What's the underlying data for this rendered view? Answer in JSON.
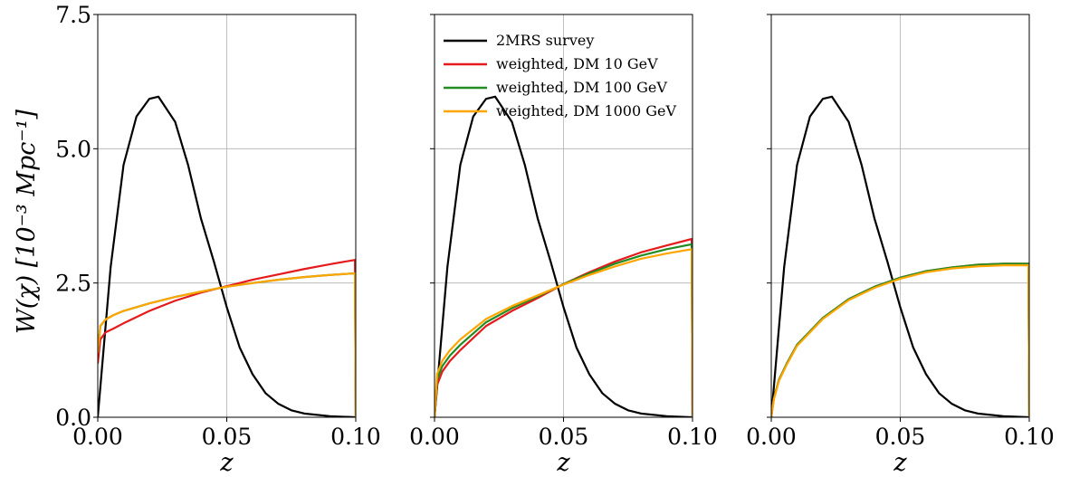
{
  "chart_data": {
    "type": "line",
    "ylabel": "W(χ) [10⁻³ Mpc⁻¹]",
    "xlabel": "z",
    "xlim": [
      0,
      0.1
    ],
    "ylim": [
      0,
      7.5
    ],
    "x_ticks": [
      "0.00",
      "0.05",
      "0.10"
    ],
    "y_ticks": [
      "0.0",
      "2.5",
      "5.0",
      "7.5"
    ],
    "grid": true,
    "legend": {
      "placement": "top (middle panel)",
      "entries": [
        {
          "label": "2MRS survey",
          "color": "#000000"
        },
        {
          "label": "weighted, DM 10 GeV",
          "color": "#e41a1c"
        },
        {
          "label": "weighted, DM 100 GeV",
          "color": "#228b22"
        },
        {
          "label": "weighted, DM 1000 GeV",
          "color": "#ffa500"
        }
      ]
    },
    "panels": [
      {
        "series": [
          {
            "name": "2MRS survey",
            "color": "#000000",
            "points": [
              [
                0,
                0
              ],
              [
                0.005,
                2.8
              ],
              [
                0.01,
                4.7
              ],
              [
                0.015,
                5.6
              ],
              [
                0.02,
                5.93
              ],
              [
                0.0235,
                5.97
              ],
              [
                0.03,
                5.5
              ],
              [
                0.035,
                4.7
              ],
              [
                0.04,
                3.7
              ],
              [
                0.045,
                2.9
              ],
              [
                0.05,
                2.05
              ],
              [
                0.055,
                1.3
              ],
              [
                0.06,
                0.8
              ],
              [
                0.065,
                0.45
              ],
              [
                0.07,
                0.25
              ],
              [
                0.075,
                0.13
              ],
              [
                0.08,
                0.07
              ],
              [
                0.09,
                0.02
              ],
              [
                0.1,
                0.0
              ]
            ]
          },
          {
            "name": "weighted, DM 10 GeV",
            "color": "#e41a1c",
            "points": [
              [
                0,
                1.0
              ],
              [
                0.001,
                1.45
              ],
              [
                0.003,
                1.58
              ],
              [
                0.006,
                1.65
              ],
              [
                0.01,
                1.75
              ],
              [
                0.02,
                1.98
              ],
              [
                0.03,
                2.17
              ],
              [
                0.04,
                2.32
              ],
              [
                0.05,
                2.44
              ],
              [
                0.06,
                2.56
              ],
              [
                0.07,
                2.66
              ],
              [
                0.08,
                2.76
              ],
              [
                0.09,
                2.85
              ],
              [
                0.0997,
                2.93
              ],
              [
                0.1,
                0.0
              ]
            ]
          },
          {
            "name": "weighted, DM 100 GeV",
            "color": "#228b22",
            "points": [
              [
                0,
                1.2
              ],
              [
                0.001,
                1.7
              ],
              [
                0.003,
                1.82
              ],
              [
                0.006,
                1.9
              ],
              [
                0.01,
                1.98
              ],
              [
                0.02,
                2.12
              ],
              [
                0.03,
                2.24
              ],
              [
                0.04,
                2.34
              ],
              [
                0.05,
                2.43
              ],
              [
                0.06,
                2.5
              ],
              [
                0.07,
                2.56
              ],
              [
                0.08,
                2.61
              ],
              [
                0.09,
                2.65
              ],
              [
                0.0997,
                2.68
              ],
              [
                0.1,
                0.0
              ]
            ]
          },
          {
            "name": "weighted, DM 1000 GeV",
            "color": "#ffa500",
            "points": [
              [
                0,
                1.2
              ],
              [
                0.001,
                1.7
              ],
              [
                0.003,
                1.82
              ],
              [
                0.006,
                1.9
              ],
              [
                0.01,
                1.98
              ],
              [
                0.02,
                2.12
              ],
              [
                0.03,
                2.24
              ],
              [
                0.04,
                2.34
              ],
              [
                0.05,
                2.43
              ],
              [
                0.06,
                2.5
              ],
              [
                0.07,
                2.56
              ],
              [
                0.08,
                2.61
              ],
              [
                0.09,
                2.65
              ],
              [
                0.0997,
                2.68
              ],
              [
                0.1,
                0.0
              ]
            ]
          }
        ]
      },
      {
        "series": [
          {
            "name": "2MRS survey",
            "color": "#000000",
            "points": [
              [
                0,
                0
              ],
              [
                0.005,
                2.8
              ],
              [
                0.01,
                4.7
              ],
              [
                0.015,
                5.6
              ],
              [
                0.02,
                5.93
              ],
              [
                0.0235,
                5.97
              ],
              [
                0.03,
                5.5
              ],
              [
                0.035,
                4.7
              ],
              [
                0.04,
                3.7
              ],
              [
                0.045,
                2.9
              ],
              [
                0.05,
                2.05
              ],
              [
                0.055,
                1.3
              ],
              [
                0.06,
                0.8
              ],
              [
                0.065,
                0.45
              ],
              [
                0.07,
                0.25
              ],
              [
                0.075,
                0.13
              ],
              [
                0.08,
                0.07
              ],
              [
                0.09,
                0.02
              ],
              [
                0.1,
                0.0
              ]
            ]
          },
          {
            "name": "weighted, DM 10 GeV",
            "color": "#e41a1c",
            "points": [
              [
                0,
                0
              ],
              [
                0.001,
                0.6
              ],
              [
                0.003,
                0.85
              ],
              [
                0.006,
                1.05
              ],
              [
                0.01,
                1.25
              ],
              [
                0.02,
                1.7
              ],
              [
                0.03,
                1.98
              ],
              [
                0.04,
                2.22
              ],
              [
                0.05,
                2.48
              ],
              [
                0.06,
                2.7
              ],
              [
                0.07,
                2.9
              ],
              [
                0.08,
                3.07
              ],
              [
                0.09,
                3.2
              ],
              [
                0.0997,
                3.32
              ],
              [
                0.1,
                0.0
              ]
            ]
          },
          {
            "name": "weighted, DM 100 GeV",
            "color": "#228b22",
            "points": [
              [
                0,
                0
              ],
              [
                0.001,
                0.7
              ],
              [
                0.003,
                0.95
              ],
              [
                0.006,
                1.15
              ],
              [
                0.01,
                1.35
              ],
              [
                0.02,
                1.77
              ],
              [
                0.03,
                2.03
              ],
              [
                0.04,
                2.25
              ],
              [
                0.05,
                2.48
              ],
              [
                0.06,
                2.68
              ],
              [
                0.07,
                2.86
              ],
              [
                0.08,
                3.01
              ],
              [
                0.09,
                3.13
              ],
              [
                0.0997,
                3.22
              ],
              [
                0.1,
                0.0
              ]
            ]
          },
          {
            "name": "weighted, DM 1000 GeV",
            "color": "#ffa500",
            "points": [
              [
                0,
                0
              ],
              [
                0.001,
                0.8
              ],
              [
                0.003,
                1.05
              ],
              [
                0.006,
                1.25
              ],
              [
                0.01,
                1.45
              ],
              [
                0.02,
                1.83
              ],
              [
                0.03,
                2.07
              ],
              [
                0.04,
                2.27
              ],
              [
                0.05,
                2.47
              ],
              [
                0.06,
                2.65
              ],
              [
                0.07,
                2.81
              ],
              [
                0.08,
                2.95
              ],
              [
                0.09,
                3.05
              ],
              [
                0.0997,
                3.13
              ],
              [
                0.1,
                0.0
              ]
            ]
          }
        ]
      },
      {
        "series": [
          {
            "name": "2MRS survey",
            "color": "#000000",
            "points": [
              [
                0,
                0
              ],
              [
                0.005,
                2.8
              ],
              [
                0.01,
                4.7
              ],
              [
                0.015,
                5.6
              ],
              [
                0.02,
                5.93
              ],
              [
                0.0235,
                5.97
              ],
              [
                0.03,
                5.5
              ],
              [
                0.035,
                4.7
              ],
              [
                0.04,
                3.7
              ],
              [
                0.045,
                2.9
              ],
              [
                0.05,
                2.05
              ],
              [
                0.055,
                1.3
              ],
              [
                0.06,
                0.8
              ],
              [
                0.065,
                0.45
              ],
              [
                0.07,
                0.25
              ],
              [
                0.075,
                0.13
              ],
              [
                0.08,
                0.07
              ],
              [
                0.09,
                0.02
              ],
              [
                0.1,
                0.0
              ]
            ]
          },
          {
            "name": "weighted, DM 10 GeV",
            "color": "#e41a1c",
            "points": [
              [
                0,
                0
              ],
              [
                0.001,
                0.35
              ],
              [
                0.003,
                0.7
              ],
              [
                0.006,
                1.0
              ],
              [
                0.01,
                1.35
              ],
              [
                0.02,
                1.85
              ],
              [
                0.03,
                2.2
              ],
              [
                0.04,
                2.43
              ],
              [
                0.05,
                2.6
              ],
              [
                0.06,
                2.72
              ],
              [
                0.07,
                2.79
              ],
              [
                0.08,
                2.84
              ],
              [
                0.09,
                2.86
              ],
              [
                0.0997,
                2.86
              ],
              [
                0.1,
                0.0
              ]
            ]
          },
          {
            "name": "weighted, DM 100 GeV",
            "color": "#228b22",
            "points": [
              [
                0,
                0
              ],
              [
                0.001,
                0.35
              ],
              [
                0.003,
                0.7
              ],
              [
                0.006,
                1.0
              ],
              [
                0.01,
                1.35
              ],
              [
                0.02,
                1.85
              ],
              [
                0.03,
                2.2
              ],
              [
                0.04,
                2.43
              ],
              [
                0.05,
                2.6
              ],
              [
                0.06,
                2.72
              ],
              [
                0.07,
                2.79
              ],
              [
                0.08,
                2.84
              ],
              [
                0.09,
                2.86
              ],
              [
                0.0997,
                2.86
              ],
              [
                0.1,
                0.0
              ]
            ]
          },
          {
            "name": "weighted, DM 1000 GeV",
            "color": "#ffa500",
            "points": [
              [
                0,
                0
              ],
              [
                0.001,
                0.33
              ],
              [
                0.003,
                0.68
              ],
              [
                0.006,
                0.98
              ],
              [
                0.01,
                1.33
              ],
              [
                0.02,
                1.83
              ],
              [
                0.03,
                2.18
              ],
              [
                0.04,
                2.41
              ],
              [
                0.05,
                2.58
              ],
              [
                0.06,
                2.7
              ],
              [
                0.07,
                2.77
              ],
              [
                0.08,
                2.81
              ],
              [
                0.09,
                2.83
              ],
              [
                0.0997,
                2.83
              ],
              [
                0.1,
                0.0
              ]
            ]
          }
        ]
      }
    ]
  }
}
